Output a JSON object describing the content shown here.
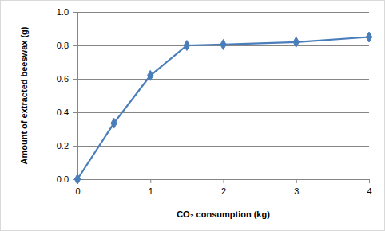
{
  "chart_data": {
    "type": "line",
    "x_label": "CO₂ consumption (kg)",
    "y_label": "Amount of extracted beeswax (g)",
    "x": [
      0,
      0.5,
      1,
      1.5,
      2,
      3,
      4
    ],
    "values": [
      0,
      0.335,
      0.62,
      0.8,
      0.805,
      0.82,
      0.85
    ],
    "color": "#4a7ebb",
    "marker": "diamond",
    "line_style": "solid",
    "xlim": [
      0,
      4
    ],
    "xticks": [
      0,
      1,
      2,
      3,
      4
    ],
    "ylim": [
      0,
      1
    ],
    "yticks": [
      {
        "value": 0,
        "label": "0.0"
      },
      {
        "value": 0.2,
        "label": "0.2"
      },
      {
        "value": 0.4,
        "label": "0.4"
      },
      {
        "value": 0.6,
        "label": "0.6"
      },
      {
        "value": 0.8,
        "label": "0.8"
      },
      {
        "value": 1,
        "label": "1.0"
      }
    ],
    "grid": true
  }
}
